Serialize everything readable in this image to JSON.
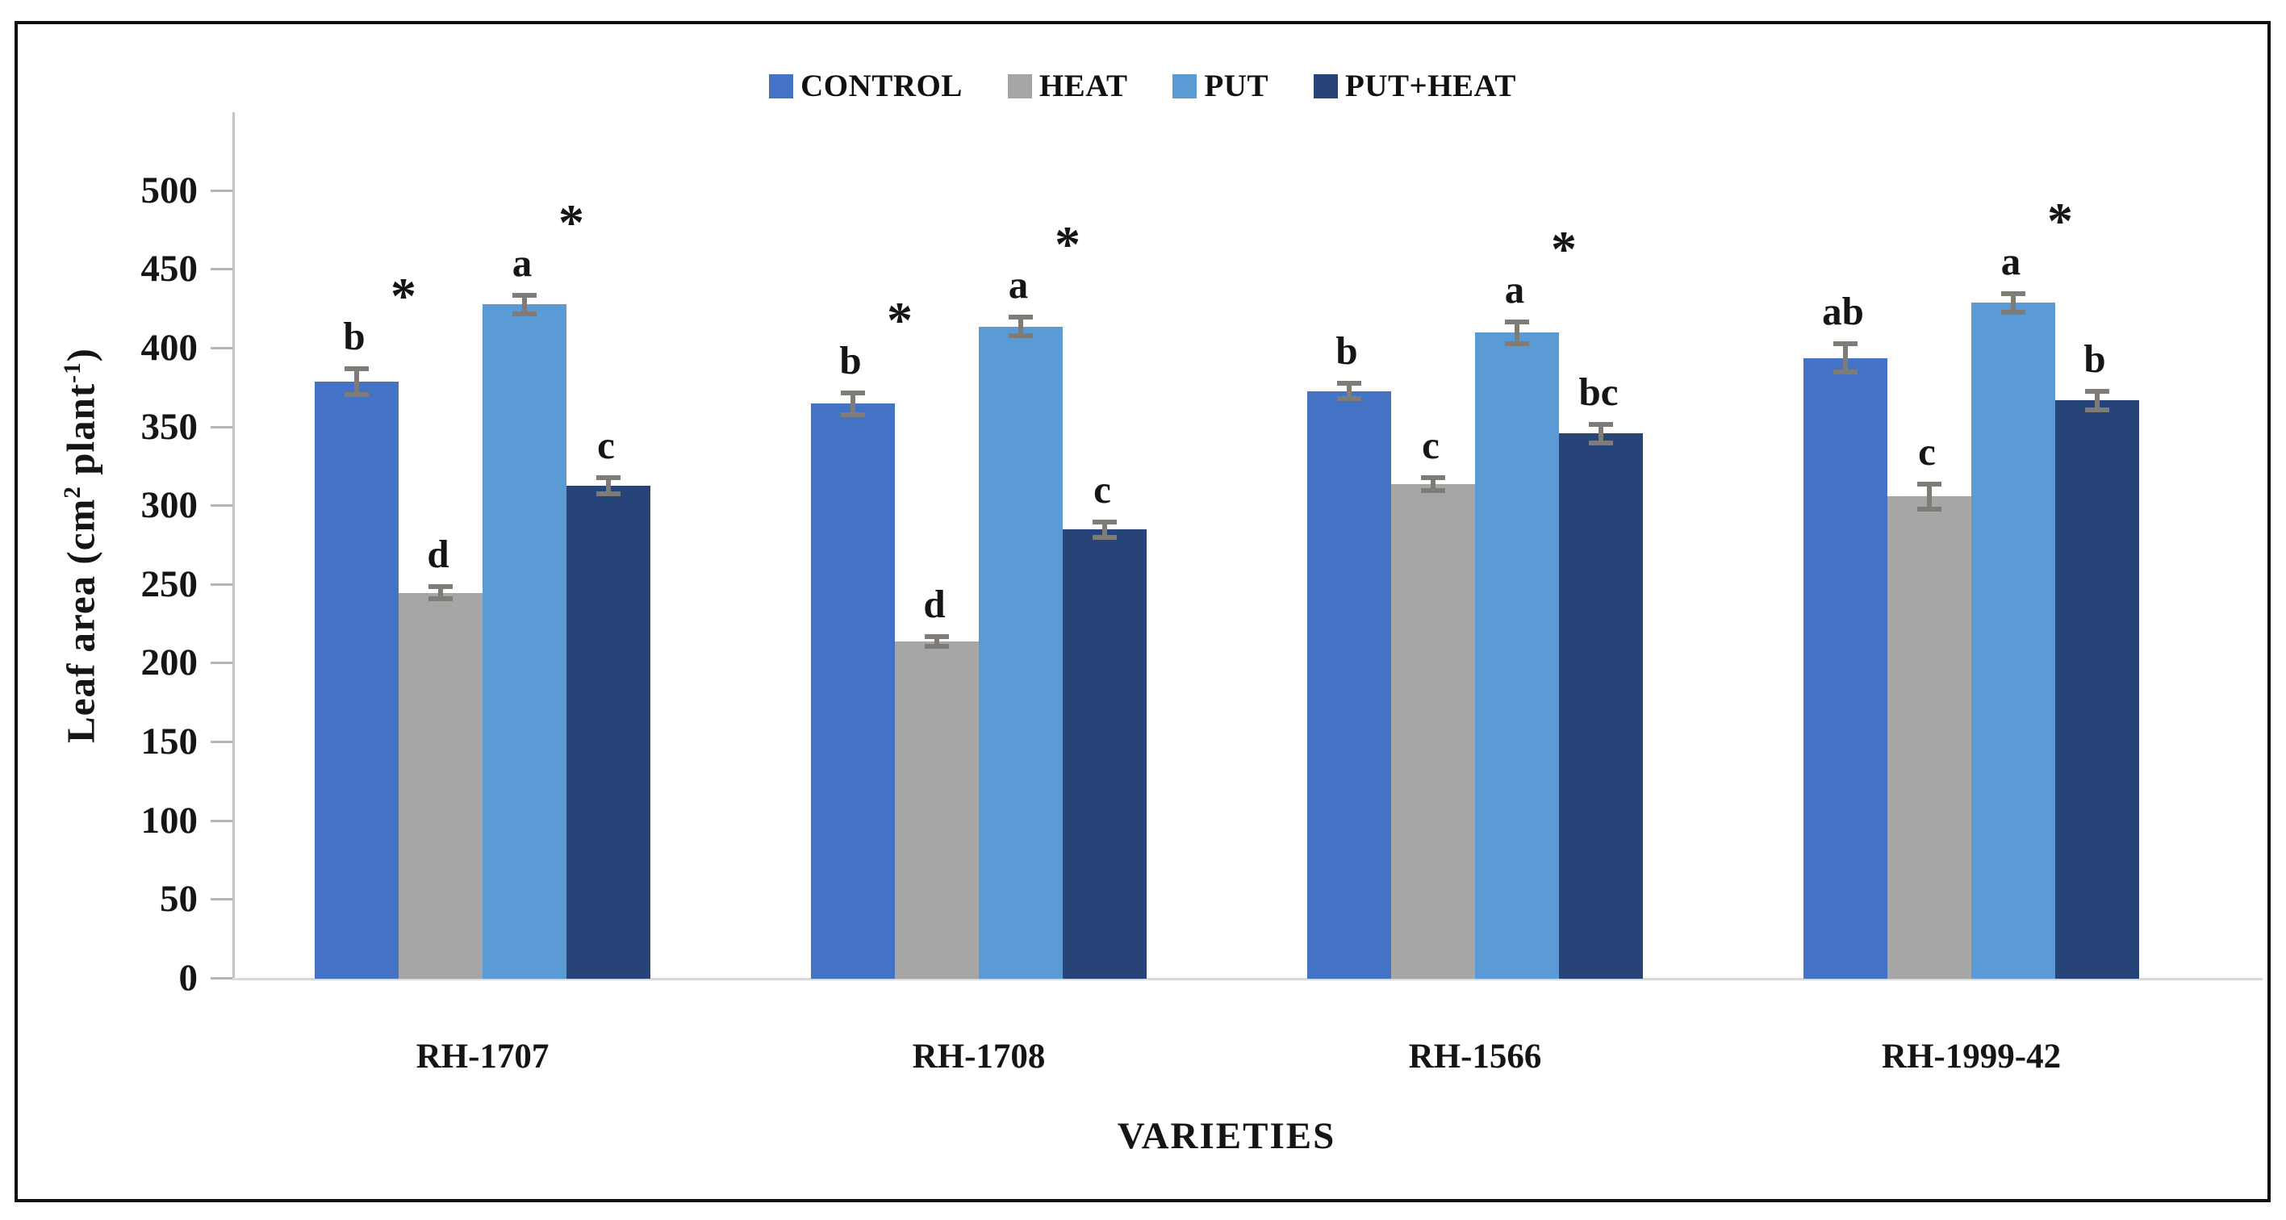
{
  "chart_data": {
    "type": "bar",
    "title": "",
    "categories": [
      "RH-1707",
      "RH-1708",
      "RH-1566",
      "RH-1999-42"
    ],
    "series": [
      {
        "name": "CONTROL",
        "color": "#4472C4",
        "values": [
          379,
          365,
          373,
          394
        ],
        "errors": [
          8,
          7,
          5,
          9
        ],
        "letters": [
          "b",
          "b",
          "b",
          "ab"
        ],
        "asterisks": [
          true,
          true,
          false,
          false
        ]
      },
      {
        "name": "HEAT",
        "color": "#A6A6A6",
        "values": [
          245,
          214,
          314,
          306
        ],
        "errors": [
          4,
          3,
          4,
          8
        ],
        "letters": [
          "d",
          "d",
          "c",
          "c"
        ],
        "asterisks": [
          false,
          false,
          false,
          false
        ]
      },
      {
        "name": "PUT",
        "color": "#5B9BD5",
        "values": [
          428,
          414,
          410,
          429
        ],
        "errors": [
          6,
          6,
          7,
          6
        ],
        "letters": [
          "a",
          "a",
          "a",
          "a"
        ],
        "asterisks": [
          true,
          true,
          true,
          true
        ]
      },
      {
        "name": "PUT+HEAT",
        "color": "#264478",
        "values": [
          313,
          285,
          346,
          367
        ],
        "errors": [
          5,
          5,
          6,
          6
        ],
        "letters": [
          "c",
          "c",
          "bc",
          "b"
        ],
        "asterisks": [
          false,
          false,
          false,
          false
        ]
      }
    ],
    "xlabel": "VARIETIES",
    "ylabel": "Leaf area (cm² plant⁻¹)",
    "ylim": [
      0,
      550
    ],
    "yticks": [
      0,
      50,
      100,
      150,
      200,
      250,
      300,
      350,
      400,
      450,
      500
    ],
    "legend_position": "top",
    "grid": false,
    "error_bar_color": "#7F7C78",
    "significance_marker": "*"
  },
  "y_label_parts": {
    "pre": "Leaf area (cm",
    "sup1": "2",
    "mid": " plant",
    "sup2": "-1",
    "post": ")"
  }
}
